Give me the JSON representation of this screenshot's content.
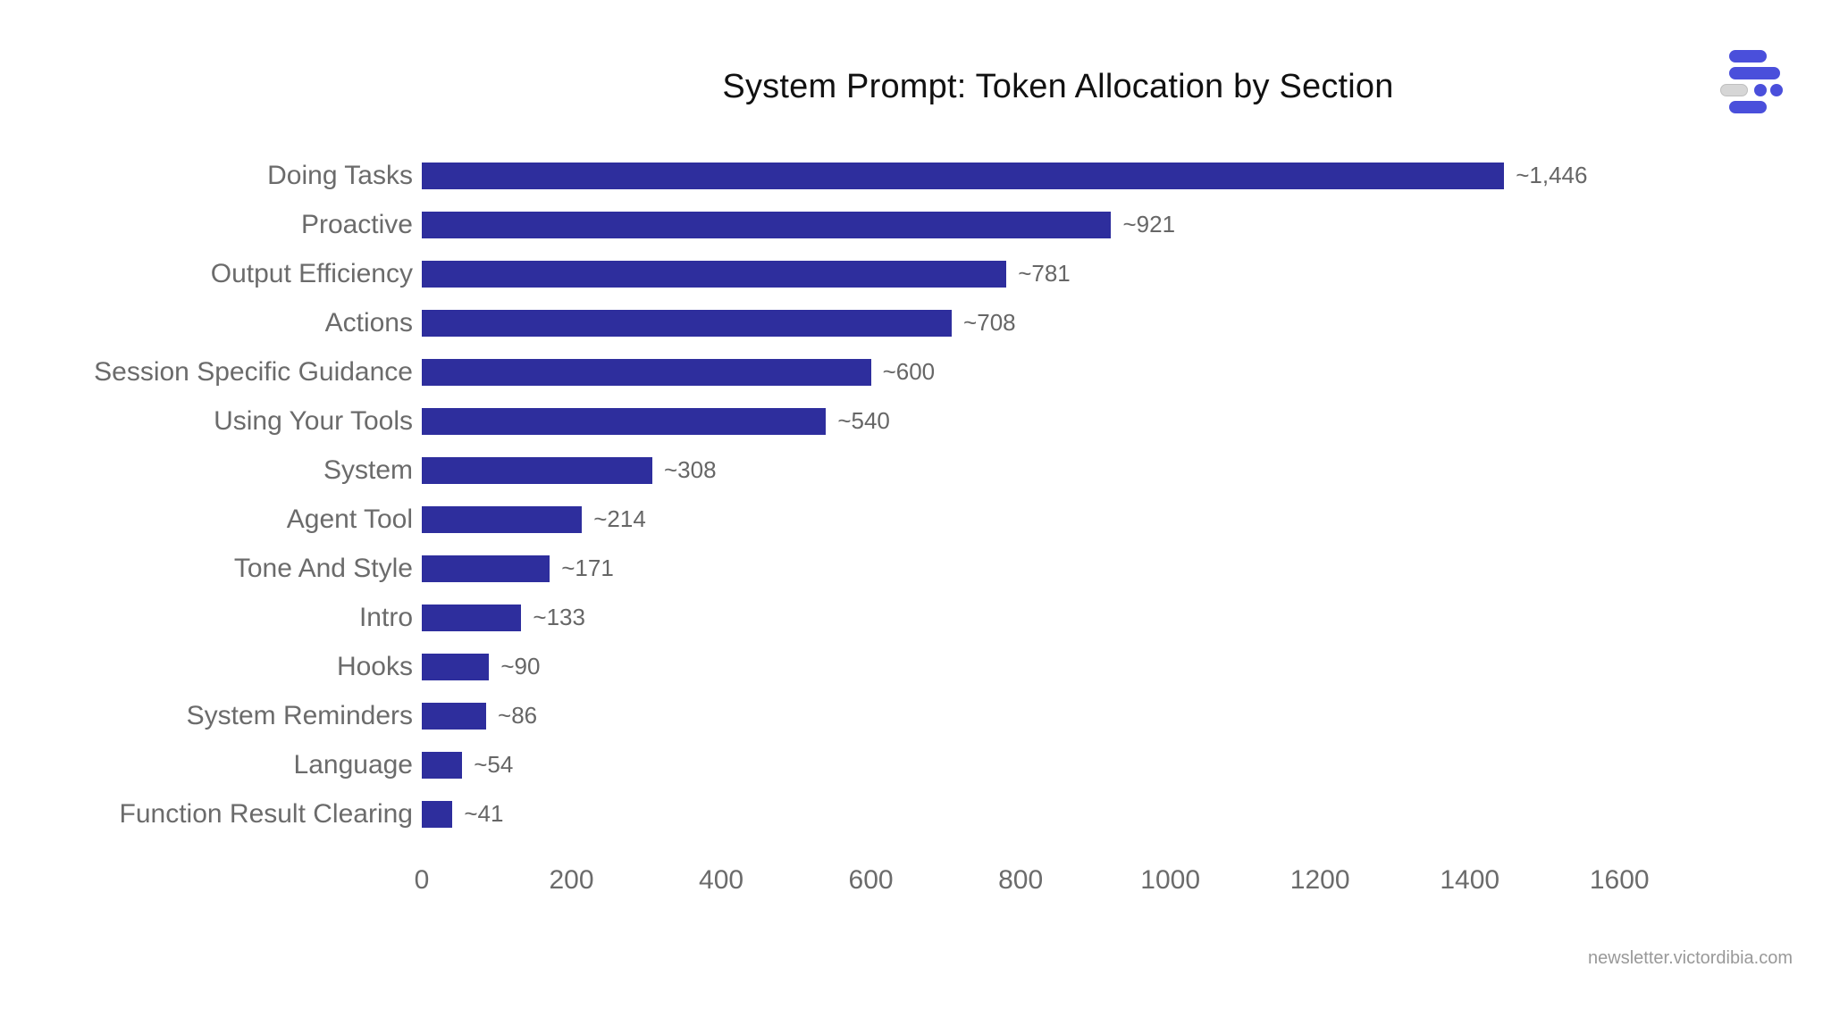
{
  "title": "System Prompt: Token Allocation by Section",
  "footer": {
    "text": "newsletter.victordibia.com"
  },
  "logo": {
    "name": "victordibia-newsletter-logo"
  },
  "colors": {
    "background": "#FFFFFF",
    "title": "#111111",
    "footer": "#999999",
    "logo_blue": "#4A4FDB",
    "logo_gray": "#D6D6D6"
  },
  "chart_data": {
    "type": "bar",
    "orientation": "horizontal",
    "title": "System Prompt: Token Allocation by Section",
    "categories": [
      "Doing Tasks",
      "Proactive",
      "Output Efficiency",
      "Actions",
      "Session Specific Guidance",
      "Using Your Tools",
      "System",
      "Agent Tool",
      "Tone And Style",
      "Intro",
      "Hooks",
      "System Reminders",
      "Language",
      "Function Result Clearing"
    ],
    "values": [
      1446,
      921,
      781,
      708,
      600,
      540,
      308,
      214,
      171,
      133,
      90,
      86,
      54,
      41
    ],
    "value_labels": [
      "~1,446",
      "~921",
      "~781",
      "~708",
      "~600",
      "~540",
      "~308",
      "~214",
      "~171",
      "~133",
      "~90",
      "~86",
      "~54",
      "~41"
    ],
    "xlabel": "",
    "ylabel": "",
    "x_ticks": [
      0,
      200,
      400,
      600,
      800,
      1000,
      1200,
      1400,
      1600
    ],
    "xlim": [
      0,
      1700
    ],
    "grid": false,
    "legend": null,
    "bar_color": "#2E2E9D",
    "label_color": "#6B6B6B",
    "value_label_color": "#666666",
    "tick_label_color": "#6B6B6B"
  }
}
